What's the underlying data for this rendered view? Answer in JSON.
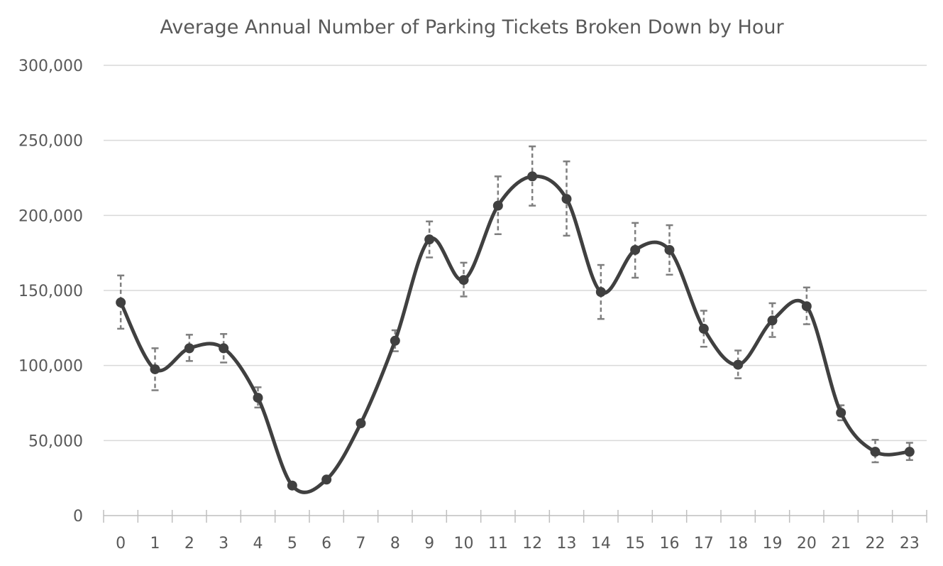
{
  "chart_data": {
    "type": "line",
    "title": "Average Annual Number of Parking Tickets Broken Down by Hour",
    "xlabel": "",
    "ylabel": "",
    "categories": [
      "0",
      "1",
      "2",
      "3",
      "4",
      "5",
      "6",
      "7",
      "8",
      "9",
      "10",
      "11",
      "12",
      "13",
      "14",
      "15",
      "16",
      "17",
      "18",
      "19",
      "20",
      "21",
      "22",
      "23"
    ],
    "series": [
      {
        "values": [
          142000,
          97500,
          111500,
          111500,
          78500,
          20000,
          24000,
          61500,
          116500,
          184000,
          157000,
          206500,
          226000,
          211000,
          149000,
          177000,
          177000,
          124500,
          100500,
          130000,
          139500,
          68500,
          42500,
          42500
        ],
        "error_low": [
          124500,
          83500,
          103000,
          102000,
          72000,
          19000,
          23000,
          60500,
          109500,
          172000,
          146000,
          187500,
          206500,
          186500,
          131000,
          158500,
          160500,
          112500,
          91500,
          119000,
          127500,
          63500,
          35500,
          37000
        ],
        "error_high": [
          160000,
          111500,
          120500,
          121000,
          85500,
          21000,
          25000,
          62500,
          123500,
          196000,
          168500,
          226000,
          246000,
          236000,
          167000,
          195000,
          193500,
          136500,
          110000,
          141500,
          152000,
          73500,
          50500,
          48500
        ],
        "color": "#404040"
      }
    ],
    "ylim": [
      0,
      300000
    ],
    "yticks": [
      0,
      50000,
      100000,
      150000,
      200000,
      250000,
      300000
    ],
    "ytick_labels": [
      "0",
      "50,000",
      "100,000",
      "150,000",
      "200,000",
      "250,000",
      "300,000"
    ],
    "grid": true,
    "legend": "none",
    "smooth": true,
    "error_bars": true
  }
}
